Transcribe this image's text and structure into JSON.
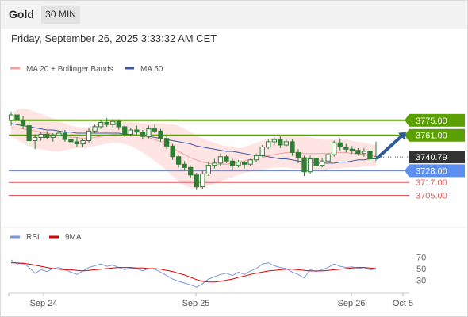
{
  "header": {
    "symbol": "Gold",
    "timeframe": "30 MIN",
    "timestamp": "Friday, September 26, 2025 3:33:32 AM CET"
  },
  "colors": {
    "bollinger_band": "#ffd9d9",
    "ma20": "#f4a0a0",
    "ma50": "#3c5a99",
    "candle": "#2e7d32",
    "resistance": "#5aa000",
    "support": "#5b8ff0",
    "target": "#e05a5a",
    "arrow": "#2e5c9a",
    "price": "#333333",
    "rsi": "#7b95e0",
    "rsi_ma": "#e00000"
  },
  "chart_data": [
    {
      "type": "candlestick",
      "legend": [
        {
          "name": "MA 20 + Bollinger Bands",
          "color": "#f4a0a0"
        },
        {
          "name": "MA 50",
          "color": "#3c5a99"
        }
      ],
      "levels": [
        {
          "value": 3775.0,
          "label": "3775.00",
          "kind": "resistance"
        },
        {
          "value": 3761.0,
          "label": "3761.00",
          "kind": "resistance"
        },
        {
          "value": 3740.79,
          "label": "3740.79",
          "kind": "price"
        },
        {
          "value": 3728.0,
          "label": "3728.00",
          "kind": "support"
        },
        {
          "value": 3717.0,
          "label": "3717.00",
          "kind": "target"
        },
        {
          "value": 3705.0,
          "label": "3705.00",
          "kind": "target"
        }
      ],
      "x_ticks": [
        "Sep 24",
        "Sep 25",
        "Sep 26",
        "Oct 5"
      ],
      "y_range": [
        3695,
        3800
      ],
      "candles": [
        [
          3775,
          3783,
          3770,
          3780
        ],
        [
          3780,
          3784,
          3772,
          3775
        ],
        [
          3775,
          3779,
          3767,
          3770
        ],
        [
          3770,
          3773,
          3752,
          3756
        ],
        [
          3756,
          3762,
          3748,
          3759
        ],
        [
          3759,
          3764,
          3756,
          3762
        ],
        [
          3762,
          3765,
          3757,
          3759
        ],
        [
          3759,
          3763,
          3755,
          3761
        ],
        [
          3761,
          3766,
          3758,
          3763
        ],
        [
          3763,
          3766,
          3755,
          3757
        ],
        [
          3757,
          3761,
          3752,
          3755
        ],
        [
          3755,
          3759,
          3750,
          3753
        ],
        [
          3753,
          3758,
          3750,
          3756
        ],
        [
          3756,
          3768,
          3754,
          3765
        ],
        [
          3765,
          3771,
          3763,
          3769
        ],
        [
          3769,
          3775,
          3767,
          3773
        ],
        [
          3773,
          3777,
          3769,
          3771
        ],
        [
          3771,
          3776,
          3768,
          3774
        ],
        [
          3774,
          3776,
          3766,
          3769
        ],
        [
          3769,
          3771,
          3759,
          3762
        ],
        [
          3762,
          3768,
          3760,
          3766
        ],
        [
          3766,
          3770,
          3761,
          3764
        ],
        [
          3764,
          3766,
          3757,
          3760
        ],
        [
          3760,
          3770,
          3758,
          3767
        ],
        [
          3767,
          3771,
          3763,
          3765
        ],
        [
          3765,
          3767,
          3755,
          3758
        ],
        [
          3758,
          3760,
          3748,
          3751
        ],
        [
          3751,
          3753,
          3738,
          3741
        ],
        [
          3741,
          3743,
          3731,
          3734
        ],
        [
          3734,
          3737,
          3728,
          3731
        ],
        [
          3731,
          3733,
          3721,
          3724
        ],
        [
          3724,
          3726,
          3710,
          3713
        ],
        [
          3713,
          3728,
          3711,
          3725
        ],
        [
          3725,
          3736,
          3723,
          3733
        ],
        [
          3733,
          3739,
          3730,
          3735
        ],
        [
          3735,
          3744,
          3732,
          3741
        ],
        [
          3741,
          3743,
          3735,
          3737
        ],
        [
          3737,
          3739,
          3729,
          3733
        ],
        [
          3733,
          3738,
          3731,
          3736
        ],
        [
          3736,
          3737,
          3730,
          3734
        ],
        [
          3734,
          3739,
          3732,
          3738
        ],
        [
          3738,
          3744,
          3736,
          3742
        ],
        [
          3742,
          3752,
          3741,
          3750
        ],
        [
          3750,
          3757,
          3748,
          3755
        ],
        [
          3755,
          3759,
          3752,
          3757
        ],
        [
          3757,
          3760,
          3749,
          3752
        ],
        [
          3752,
          3757,
          3750,
          3755
        ],
        [
          3755,
          3757,
          3742,
          3745
        ],
        [
          3745,
          3748,
          3735,
          3740
        ],
        [
          3740,
          3742,
          3723,
          3727
        ],
        [
          3727,
          3742,
          3725,
          3739
        ],
        [
          3739,
          3741,
          3730,
          3733
        ],
        [
          3733,
          3740,
          3731,
          3737
        ],
        [
          3737,
          3745,
          3735,
          3743
        ],
        [
          3743,
          3756,
          3741,
          3754
        ],
        [
          3754,
          3758,
          3747,
          3750
        ],
        [
          3750,
          3753,
          3745,
          3748
        ],
        [
          3748,
          3751,
          3744,
          3747
        ],
        [
          3747,
          3749,
          3742,
          3744
        ],
        [
          3744,
          3749,
          3741,
          3746
        ],
        [
          3746,
          3748,
          3736,
          3739
        ],
        [
          3739,
          3755,
          3737,
          3741
        ]
      ],
      "ma20": [
        3768,
        3768,
        3767,
        3766,
        3765,
        3764,
        3763,
        3762,
        3761,
        3760,
        3759,
        3759,
        3758,
        3758,
        3759,
        3760,
        3761,
        3762,
        3762,
        3762,
        3762,
        3761,
        3760,
        3759,
        3757,
        3755,
        3752,
        3749,
        3746,
        3743,
        3740,
        3738,
        3736,
        3735,
        3734,
        3734,
        3734,
        3735,
        3736,
        3737,
        3738,
        3739,
        3740,
        3742,
        3743,
        3744,
        3745,
        3745,
        3745,
        3744,
        3744,
        3744,
        3744,
        3744,
        3745,
        3745,
        3745,
        3744,
        3744,
        3743,
        3742,
        3742
      ],
      "bb_upper": [
        3780,
        3785,
        3786,
        3785,
        3783,
        3781,
        3779,
        3777,
        3775,
        3772,
        3770,
        3769,
        3768,
        3769,
        3771,
        3773,
        3775,
        3776,
        3776,
        3775,
        3774,
        3773,
        3772,
        3772,
        3772,
        3772,
        3772,
        3772,
        3770,
        3767,
        3764,
        3761,
        3758,
        3756,
        3754,
        3752,
        3751,
        3750,
        3749,
        3750,
        3752,
        3754,
        3756,
        3758,
        3759,
        3760,
        3760,
        3760,
        3760,
        3760,
        3759,
        3758,
        3757,
        3757,
        3757,
        3757,
        3757,
        3756,
        3755,
        3754,
        3753,
        3752
      ],
      "bb_lower": [
        3760,
        3757,
        3754,
        3751,
        3749,
        3748,
        3747,
        3746,
        3746,
        3747,
        3748,
        3749,
        3749,
        3750,
        3751,
        3752,
        3753,
        3754,
        3754,
        3753,
        3751,
        3748,
        3745,
        3741,
        3737,
        3733,
        3728,
        3723,
        3718,
        3714,
        3712,
        3711,
        3712,
        3714,
        3716,
        3718,
        3720,
        3722,
        3724,
        3726,
        3727,
        3728,
        3729,
        3730,
        3731,
        3731,
        3731,
        3730,
        3730,
        3729,
        3729,
        3729,
        3729,
        3729,
        3730,
        3730,
        3731,
        3731,
        3731,
        3732,
        3732,
        3732
      ],
      "ma50": [
        3772,
        3771,
        3770,
        3769,
        3768,
        3767,
        3766,
        3766,
        3765,
        3764,
        3764,
        3763,
        3763,
        3763,
        3763,
        3763,
        3763,
        3763,
        3763,
        3762,
        3762,
        3761,
        3761,
        3760,
        3759,
        3758,
        3757,
        3756,
        3755,
        3754,
        3753,
        3751,
        3750,
        3749,
        3748,
        3747,
        3746,
        3746,
        3745,
        3744,
        3743,
        3742,
        3742,
        3741,
        3740,
        3739,
        3739,
        3738,
        3737,
        3736,
        3736,
        3735,
        3735,
        3735,
        3735,
        3736,
        3736,
        3737,
        3738,
        3738,
        3739,
        3739
      ],
      "projection": {
        "from": 3740,
        "to": 3760
      }
    },
    {
      "type": "line",
      "legend": [
        {
          "name": "RSI",
          "color": "#7b95e0"
        },
        {
          "name": "9MA",
          "color": "#e00000"
        }
      ],
      "y_ticks": [
        70,
        50,
        30
      ],
      "y_range": [
        10,
        90
      ],
      "rsi": [
        65,
        58,
        60,
        52,
        42,
        48,
        45,
        50,
        52,
        48,
        44,
        40,
        46,
        52,
        55,
        58,
        54,
        56,
        52,
        48,
        51,
        50,
        46,
        50,
        49,
        44,
        38,
        32,
        28,
        25,
        22,
        18,
        24,
        32,
        36,
        40,
        42,
        38,
        44,
        40,
        46,
        50,
        58,
        60,
        55,
        52,
        50,
        44,
        40,
        34,
        48,
        45,
        48,
        52,
        58,
        54,
        52,
        53,
        50,
        52,
        48,
        49
      ],
      "rsi_ma": [
        60,
        60,
        59,
        58,
        56,
        54,
        52,
        50,
        49,
        48,
        48,
        47,
        46,
        47,
        48,
        49,
        50,
        51,
        52,
        52,
        52,
        51,
        51,
        50,
        50,
        49,
        47,
        45,
        42,
        39,
        35,
        31,
        28,
        27,
        27,
        28,
        30,
        32,
        35,
        37,
        40,
        42,
        44,
        46,
        47,
        48,
        49,
        49,
        48,
        47,
        46,
        46,
        46,
        47,
        48,
        49,
        50,
        51,
        52,
        52,
        51,
        50
      ]
    }
  ]
}
